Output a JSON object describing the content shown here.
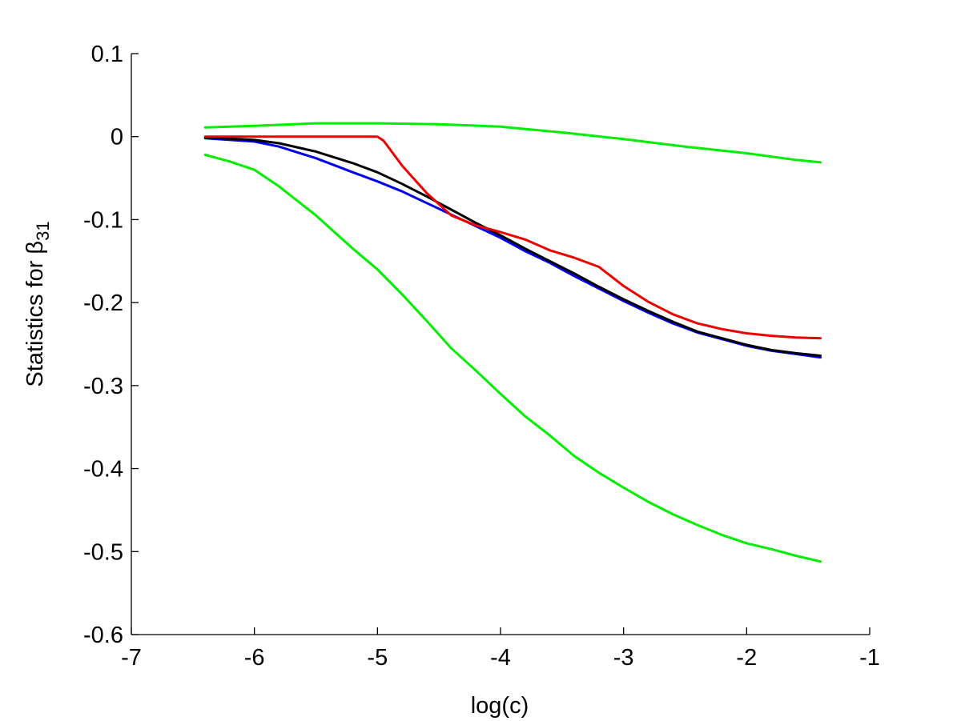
{
  "chart_data": {
    "type": "line",
    "xlabel": "log(c)",
    "ylabel": {
      "prefix": "Statistics for ",
      "symbol": "β",
      "subscript": "31"
    },
    "xlim": [
      -7,
      -1
    ],
    "ylim": [
      -0.6,
      0.1
    ],
    "xticks": [
      -7,
      -6,
      -5,
      -4,
      -3,
      -2,
      -1
    ],
    "yticks": [
      0.1,
      0,
      -0.1,
      -0.2,
      -0.3,
      -0.4,
      -0.5,
      -0.6
    ],
    "xtick_labels": [
      "-7",
      "-6",
      "-5",
      "-4",
      "-3",
      "-2",
      "-1"
    ],
    "ytick_labels": [
      "0.1",
      "0",
      "-0.1",
      "-0.2",
      "-0.3",
      "-0.4",
      "-0.5",
      "-0.6"
    ],
    "grid": false,
    "series": [
      {
        "color": "#00ee00",
        "x": [
          -6.4,
          -6.0,
          -5.5,
          -5.0,
          -4.5,
          -4.0,
          -3.5,
          -3.0,
          -2.5,
          -2.0,
          -1.6,
          -1.4
        ],
        "y": [
          0.011,
          0.013,
          0.016,
          0.016,
          0.015,
          0.012,
          0.005,
          -0.003,
          -0.012,
          -0.02,
          -0.028,
          -0.031
        ]
      },
      {
        "color": "#00ee00",
        "x": [
          -6.4,
          -6.2,
          -6.0,
          -5.8,
          -5.5,
          -5.2,
          -5.0,
          -4.8,
          -4.6,
          -4.4,
          -4.2,
          -4.0,
          -3.8,
          -3.6,
          -3.4,
          -3.2,
          -3.0,
          -2.8,
          -2.6,
          -2.4,
          -2.2,
          -2.0,
          -1.8,
          -1.6,
          -1.4
        ],
        "y": [
          -0.022,
          -0.03,
          -0.04,
          -0.06,
          -0.095,
          -0.135,
          -0.16,
          -0.19,
          -0.222,
          -0.255,
          -0.282,
          -0.31,
          -0.337,
          -0.36,
          -0.385,
          -0.405,
          -0.423,
          -0.44,
          -0.455,
          -0.468,
          -0.48,
          -0.49,
          -0.497,
          -0.505,
          -0.512
        ]
      },
      {
        "color": "#0000ee",
        "x": [
          -6.4,
          -6.0,
          -5.8,
          -5.5,
          -5.2,
          -5.0,
          -4.8,
          -4.6,
          -4.4,
          -4.2,
          -4.0,
          -3.8,
          -3.6,
          -3.4,
          -3.2,
          -3.0,
          -2.8,
          -2.6,
          -2.4,
          -2.2,
          -2.0,
          -1.8,
          -1.6,
          -1.4
        ],
        "y": [
          -0.002,
          -0.006,
          -0.012,
          -0.026,
          -0.043,
          -0.054,
          -0.066,
          -0.08,
          -0.094,
          -0.108,
          -0.122,
          -0.138,
          -0.152,
          -0.168,
          -0.183,
          -0.198,
          -0.212,
          -0.225,
          -0.236,
          -0.244,
          -0.252,
          -0.258,
          -0.262,
          -0.266
        ]
      },
      {
        "color": "#000000",
        "x": [
          -6.4,
          -6.0,
          -5.8,
          -5.5,
          -5.2,
          -5.0,
          -4.8,
          -4.6,
          -4.4,
          -4.2,
          -4.0,
          -3.8,
          -3.6,
          -3.4,
          -3.2,
          -3.0,
          -2.8,
          -2.6,
          -2.4,
          -2.2,
          -2.0,
          -1.8,
          -1.6,
          -1.4
        ],
        "y": [
          -0.001,
          -0.004,
          -0.008,
          -0.018,
          -0.032,
          -0.043,
          -0.057,
          -0.072,
          -0.088,
          -0.104,
          -0.119,
          -0.135,
          -0.15,
          -0.165,
          -0.181,
          -0.196,
          -0.21,
          -0.223,
          -0.235,
          -0.243,
          -0.251,
          -0.257,
          -0.261,
          -0.264
        ]
      },
      {
        "color": "#ee0000",
        "x": [
          -6.4,
          -5.5,
          -5.0,
          -4.95,
          -4.8,
          -4.6,
          -4.4,
          -4.2,
          -4.0,
          -3.8,
          -3.6,
          -3.4,
          -3.2,
          -3.0,
          -2.8,
          -2.6,
          -2.4,
          -2.2,
          -2.0,
          -1.8,
          -1.6,
          -1.4
        ],
        "y": [
          0.0,
          0.0,
          0.0,
          -0.005,
          -0.035,
          -0.068,
          -0.095,
          -0.107,
          -0.115,
          -0.124,
          -0.137,
          -0.146,
          -0.157,
          -0.18,
          -0.199,
          -0.214,
          -0.225,
          -0.232,
          -0.237,
          -0.24,
          -0.242,
          -0.243
        ]
      }
    ]
  }
}
